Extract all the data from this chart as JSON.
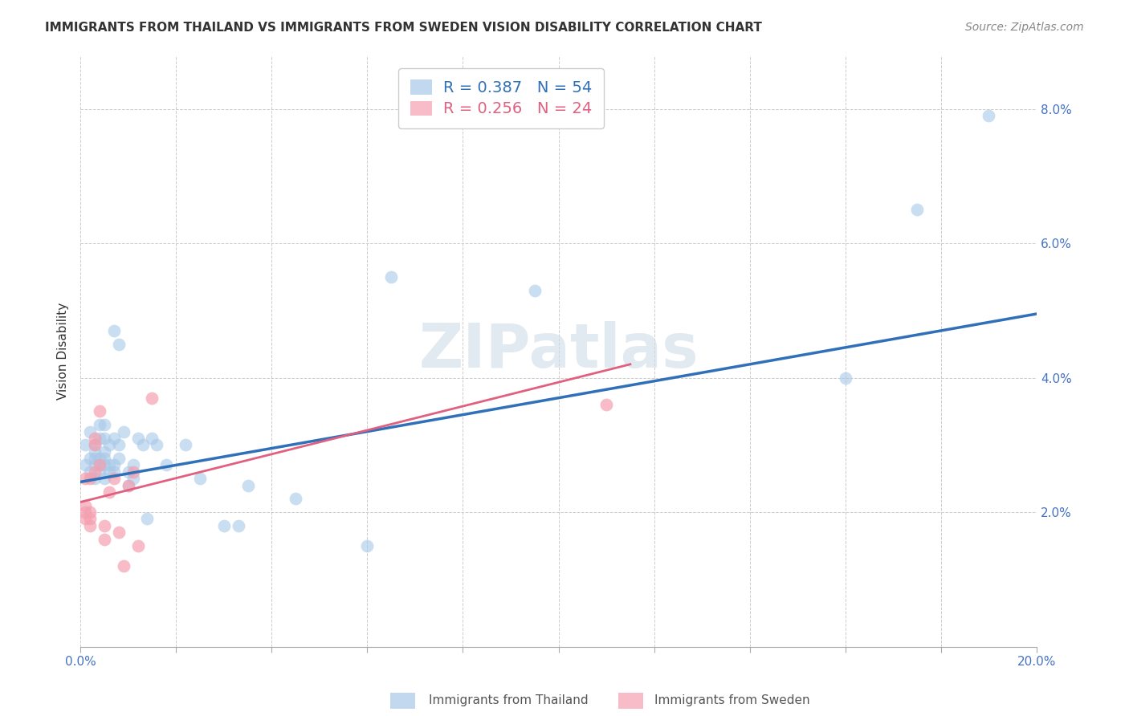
{
  "title": "IMMIGRANTS FROM THAILAND VS IMMIGRANTS FROM SWEDEN VISION DISABILITY CORRELATION CHART",
  "source": "Source: ZipAtlas.com",
  "ylabel": "Vision Disability",
  "xlim": [
    0.0,
    0.2
  ],
  "ylim": [
    0.0,
    0.088
  ],
  "yticks": [
    0.0,
    0.02,
    0.04,
    0.06,
    0.08
  ],
  "ytick_labels": [
    "",
    "2.0%",
    "4.0%",
    "6.0%",
    "8.0%"
  ],
  "xtick_pos": [
    0.0,
    0.02,
    0.04,
    0.06,
    0.08,
    0.1,
    0.12,
    0.14,
    0.16,
    0.18,
    0.2
  ],
  "xtick_labels": [
    "0.0%",
    "",
    "",
    "",
    "",
    "",
    "",
    "",
    "",
    "",
    "20.0%"
  ],
  "background_color": "#ffffff",
  "grid_color": "#cccccc",
  "watermark_text": "ZIPatlas",
  "color_thailand": "#a8c8e8",
  "color_sweden": "#f4a0b0",
  "color_trendline_thailand": "#3070b8",
  "color_trendline_sweden": "#e06080",
  "thailand_scatter_x": [
    0.001,
    0.001,
    0.002,
    0.002,
    0.002,
    0.003,
    0.003,
    0.003,
    0.003,
    0.003,
    0.004,
    0.004,
    0.004,
    0.004,
    0.004,
    0.005,
    0.005,
    0.005,
    0.005,
    0.005,
    0.005,
    0.006,
    0.006,
    0.006,
    0.007,
    0.007,
    0.007,
    0.007,
    0.008,
    0.008,
    0.008,
    0.009,
    0.01,
    0.01,
    0.011,
    0.011,
    0.012,
    0.013,
    0.014,
    0.015,
    0.016,
    0.018,
    0.022,
    0.025,
    0.03,
    0.033,
    0.035,
    0.045,
    0.06,
    0.065,
    0.095,
    0.16,
    0.175,
    0.19
  ],
  "thailand_scatter_y": [
    0.027,
    0.03,
    0.026,
    0.028,
    0.032,
    0.025,
    0.027,
    0.028,
    0.029,
    0.03,
    0.026,
    0.027,
    0.028,
    0.031,
    0.033,
    0.025,
    0.027,
    0.028,
    0.029,
    0.031,
    0.033,
    0.026,
    0.027,
    0.03,
    0.026,
    0.027,
    0.031,
    0.047,
    0.028,
    0.03,
    0.045,
    0.032,
    0.024,
    0.026,
    0.027,
    0.025,
    0.031,
    0.03,
    0.019,
    0.031,
    0.03,
    0.027,
    0.03,
    0.025,
    0.018,
    0.018,
    0.024,
    0.022,
    0.015,
    0.055,
    0.053,
    0.04,
    0.065,
    0.079
  ],
  "sweden_scatter_x": [
    0.001,
    0.001,
    0.001,
    0.001,
    0.002,
    0.002,
    0.002,
    0.002,
    0.003,
    0.003,
    0.003,
    0.004,
    0.004,
    0.005,
    0.005,
    0.006,
    0.007,
    0.008,
    0.009,
    0.01,
    0.011,
    0.012,
    0.015,
    0.11
  ],
  "sweden_scatter_y": [
    0.019,
    0.02,
    0.021,
    0.025,
    0.018,
    0.019,
    0.02,
    0.025,
    0.026,
    0.03,
    0.031,
    0.027,
    0.035,
    0.016,
    0.018,
    0.023,
    0.025,
    0.017,
    0.012,
    0.024,
    0.026,
    0.015,
    0.037,
    0.036
  ],
  "thailand_trendline_x": [
    0.0,
    0.2
  ],
  "thailand_trendline_y": [
    0.0245,
    0.0495
  ],
  "sweden_trendline_x": [
    0.0,
    0.115
  ],
  "sweden_trendline_y": [
    0.0215,
    0.042
  ],
  "marker_size": 130,
  "title_fontsize": 11,
  "axis_label_fontsize": 11,
  "tick_fontsize": 11,
  "tick_color": "#4472c4",
  "legend_fontsize": 13,
  "source_fontsize": 10,
  "watermark_fontsize": 55,
  "watermark_color": "#d0dce8",
  "watermark_alpha": 0.6
}
